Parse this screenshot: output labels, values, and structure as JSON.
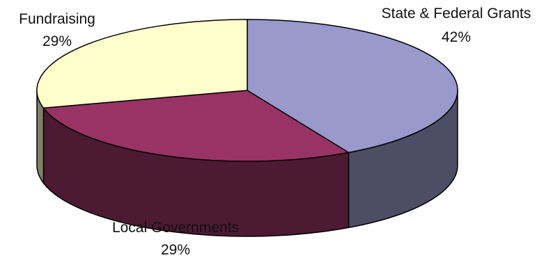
{
  "chart_data": {
    "type": "pie",
    "title": "",
    "style": "3d",
    "legend": "none",
    "slices": [
      {
        "label": "State & Federal Grants",
        "value": 42,
        "value_label": "42%",
        "color": "#9999cc"
      },
      {
        "label": "Local Governments",
        "value": 29,
        "value_label": "29%",
        "color": "#993366"
      },
      {
        "label": "Fundraising",
        "value": 29,
        "value_label": "29%",
        "color": "#ffffcc"
      }
    ]
  }
}
